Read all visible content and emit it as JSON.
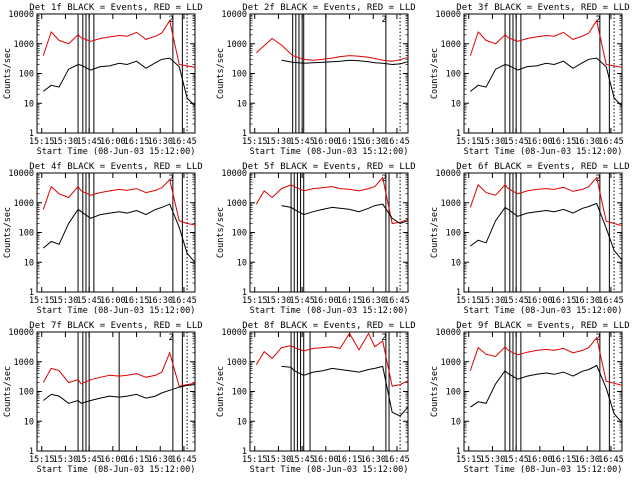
{
  "figure": {
    "start_time_label": "Start Time (08-Jun-03 15:12:00)",
    "ylabel": "Counts/sec",
    "time_ticks": [
      "15:15",
      "15:30",
      "15:45",
      "16:00",
      "16:15",
      "16:30",
      "16:45"
    ],
    "y_ticks": [
      "1",
      "10",
      "100",
      "1000",
      "10000"
    ],
    "series_colors": {
      "events": "#000000",
      "lld": "#e00000"
    },
    "legend_code": "2"
  },
  "chart_data": [
    {
      "type": "line",
      "title": "Det 1f BLACK = Events, RED = LLD",
      "xlabel": "Start Time (08-Jun-03 15:12:00)",
      "ylabel": "Counts/sec",
      "ylim": [
        1,
        10000
      ],
      "yscale": "log",
      "xlim_min": [
        0,
        100
      ],
      "x_min": [
        4,
        9,
        14,
        20,
        26,
        28,
        34,
        40,
        46,
        52,
        57,
        63,
        69,
        75,
        79,
        84,
        90,
        95,
        100
      ],
      "events": [
        25,
        40,
        35,
        140,
        200,
        190,
        130,
        170,
        180,
        220,
        200,
        260,
        150,
        230,
        300,
        330,
        170,
        15,
        8
      ],
      "lld": [
        400,
        2500,
        1300,
        1000,
        2000,
        1600,
        1200,
        1500,
        1700,
        1900,
        1800,
        2400,
        1400,
        1800,
        2300,
        6000,
        200,
        180,
        160
      ],
      "vlines_min": [
        26,
        29,
        31,
        33,
        36,
        86,
        92
      ]
    },
    {
      "type": "line",
      "title": "Det 2f BLACK = Events, RED = LLD",
      "xlabel": "Start Time (08-Jun-03 15:12:00)",
      "ylabel": "Counts/sec",
      "ylim": [
        1,
        10000
      ],
      "yscale": "log",
      "xlim_min": [
        0,
        100
      ],
      "x_min": [
        4,
        14,
        20,
        27,
        34,
        40,
        46,
        52,
        57,
        63,
        69,
        75,
        79,
        84,
        90,
        95,
        100
      ],
      "events": [
        null,
        null,
        280,
        240,
        220,
        230,
        240,
        250,
        260,
        280,
        270,
        250,
        230,
        220,
        200,
        210,
        250
      ],
      "lld": [
        500,
        1500,
        900,
        400,
        300,
        280,
        300,
        330,
        370,
        400,
        380,
        350,
        320,
        280,
        260,
        290,
        350
      ],
      "vlines_min": [
        27,
        29,
        31,
        33,
        34,
        48,
        86
      ]
    },
    {
      "type": "line",
      "title": "Det 3f BLACK = Events, RED = LLD",
      "xlabel": "Start Time (08-Jun-03 15:12:00)",
      "ylabel": "Counts/sec",
      "ylim": [
        1,
        10000
      ],
      "yscale": "log",
      "xlim_min": [
        0,
        100
      ],
      "x_min": [
        4,
        9,
        14,
        20,
        26,
        28,
        34,
        40,
        46,
        52,
        57,
        63,
        69,
        75,
        79,
        84,
        90,
        95,
        100
      ],
      "events": [
        25,
        40,
        35,
        140,
        200,
        190,
        130,
        170,
        180,
        220,
        200,
        260,
        150,
        230,
        300,
        330,
        170,
        15,
        8
      ],
      "lld": [
        400,
        2500,
        1300,
        1000,
        2000,
        1600,
        1200,
        1500,
        1700,
        1900,
        1800,
        2400,
        1400,
        1800,
        2300,
        6000,
        200,
        180,
        160
      ],
      "vlines_min": [
        26,
        29,
        31,
        33,
        36,
        86,
        92
      ]
    },
    {
      "type": "line",
      "title": "Det 4f BLACK = Events, RED = LLD",
      "xlabel": "Start Time (08-Jun-03 15:12:00)",
      "ylabel": "Counts/sec",
      "ylim": [
        1,
        10000
      ],
      "yscale": "log",
      "xlim_min": [
        0,
        100
      ],
      "x_min": [
        4,
        9,
        14,
        20,
        26,
        28,
        34,
        40,
        46,
        52,
        57,
        63,
        69,
        75,
        79,
        84,
        90,
        95,
        100
      ],
      "events": [
        30,
        50,
        40,
        200,
        600,
        500,
        300,
        400,
        450,
        500,
        450,
        550,
        400,
        600,
        700,
        900,
        150,
        20,
        10
      ],
      "lld": [
        600,
        3500,
        2000,
        1500,
        3500,
        2500,
        1800,
        2200,
        2500,
        2800,
        2600,
        3000,
        2200,
        2600,
        3200,
        6000,
        250,
        200,
        180
      ],
      "vlines_min": [
        26,
        29,
        31,
        33,
        36,
        86,
        92
      ]
    },
    {
      "type": "line",
      "title": "Det 5f BLACK = Events, RED = LLD",
      "xlabel": "Start Time (08-Jun-03 15:12:00)",
      "ylabel": "Counts/sec",
      "ylim": [
        1,
        10000
      ],
      "yscale": "log",
      "xlim_min": [
        0,
        100
      ],
      "x_min": [
        4,
        9,
        14,
        20,
        26,
        28,
        34,
        40,
        46,
        52,
        57,
        63,
        69,
        75,
        79,
        84,
        90,
        95,
        100
      ],
      "events": [
        null,
        null,
        null,
        800,
        700,
        600,
        400,
        500,
        600,
        700,
        650,
        600,
        500,
        650,
        800,
        900,
        300,
        200,
        250
      ],
      "lld": [
        900,
        2500,
        1500,
        3000,
        4000,
        3500,
        2500,
        3000,
        3200,
        3500,
        3000,
        2800,
        2500,
        3000,
        3500,
        7000,
        200,
        220,
        280
      ],
      "vlines_min": [
        26,
        28,
        30,
        32,
        34,
        86,
        88
      ]
    },
    {
      "type": "line",
      "title": "Det 6f BLACK = Events, RED = LLD",
      "xlabel": "Start Time (08-Jun-03 15:12:00)",
      "ylabel": "Counts/sec",
      "ylim": [
        1,
        10000
      ],
      "yscale": "log",
      "xlim_min": [
        0,
        100
      ],
      "x_min": [
        4,
        9,
        14,
        20,
        26,
        28,
        34,
        40,
        46,
        52,
        57,
        63,
        69,
        75,
        79,
        84,
        90,
        95,
        100
      ],
      "events": [
        35,
        55,
        45,
        250,
        700,
        600,
        350,
        450,
        500,
        550,
        500,
        600,
        450,
        650,
        750,
        950,
        140,
        25,
        12
      ],
      "lld": [
        700,
        4000,
        2200,
        1800,
        4000,
        3000,
        2000,
        2500,
        2800,
        3000,
        2800,
        3300,
        2400,
        2800,
        3500,
        7000,
        240,
        200,
        170
      ],
      "vlines_min": [
        26,
        29,
        31,
        33,
        36,
        86,
        92
      ]
    },
    {
      "type": "line",
      "title": "Det 7f BLACK = Events, RED = LLD",
      "xlabel": "Start Time (08-Jun-03 15:12:00)",
      "ylabel": "Counts/sec",
      "ylim": [
        1,
        10000
      ],
      "yscale": "log",
      "xlim_min": [
        0,
        100
      ],
      "x_min": [
        4,
        9,
        14,
        20,
        26,
        28,
        34,
        40,
        46,
        52,
        57,
        63,
        69,
        75,
        79,
        84,
        90,
        95,
        100
      ],
      "events": [
        50,
        80,
        70,
        40,
        50,
        40,
        50,
        60,
        70,
        65,
        70,
        80,
        60,
        70,
        90,
        110,
        140,
        160,
        170
      ],
      "lld": [
        200,
        600,
        500,
        200,
        250,
        180,
        250,
        300,
        350,
        330,
        350,
        400,
        300,
        350,
        450,
        2000,
        150,
        170,
        190
      ],
      "vlines_min": [
        26,
        29,
        31,
        33,
        52,
        86,
        92
      ]
    },
    {
      "type": "line",
      "title": "Det 8f BLACK = Events, RED = LLD",
      "xlabel": "Start Time (08-Jun-03 15:12:00)",
      "ylabel": "Counts/sec",
      "ylim": [
        1,
        10000
      ],
      "yscale": "log",
      "xlim_min": [
        0,
        100
      ],
      "x_min": [
        4,
        9,
        14,
        20,
        26,
        28,
        34,
        40,
        46,
        52,
        57,
        63,
        69,
        75,
        79,
        84,
        90,
        95,
        100
      ],
      "events": [
        null,
        null,
        null,
        700,
        650,
        500,
        350,
        450,
        500,
        600,
        550,
        500,
        450,
        550,
        600,
        700,
        20,
        15,
        30
      ],
      "lld": [
        800,
        2200,
        1300,
        3000,
        3500,
        3000,
        2300,
        2800,
        3000,
        3200,
        2800,
        9000,
        2500,
        9000,
        3200,
        5000,
        150,
        170,
        230
      ],
      "vlines_min": [
        26,
        28,
        30,
        32,
        34,
        38,
        86,
        88
      ]
    },
    {
      "type": "line",
      "title": "Det 9f BLACK = Events, RED = LLD",
      "xlabel": "Start Time (08-Jun-03 15:12:00)",
      "ylabel": "Counts/sec",
      "ylim": [
        1,
        10000
      ],
      "yscale": "log",
      "xlim_min": [
        0,
        100
      ],
      "x_min": [
        4,
        9,
        14,
        20,
        26,
        28,
        34,
        40,
        46,
        52,
        57,
        63,
        69,
        75,
        79,
        84,
        90,
        95,
        100
      ],
      "events": [
        30,
        45,
        40,
        180,
        500,
        400,
        260,
        330,
        380,
        420,
        380,
        450,
        330,
        480,
        550,
        750,
        130,
        18,
        9
      ],
      "lld": [
        500,
        3000,
        1800,
        1500,
        3200,
        2400,
        1700,
        2100,
        2400,
        2600,
        2400,
        2800,
        2000,
        2400,
        3000,
        6500,
        220,
        190,
        160
      ],
      "vlines_min": [
        26,
        29,
        31,
        33,
        36,
        86,
        92
      ]
    }
  ]
}
